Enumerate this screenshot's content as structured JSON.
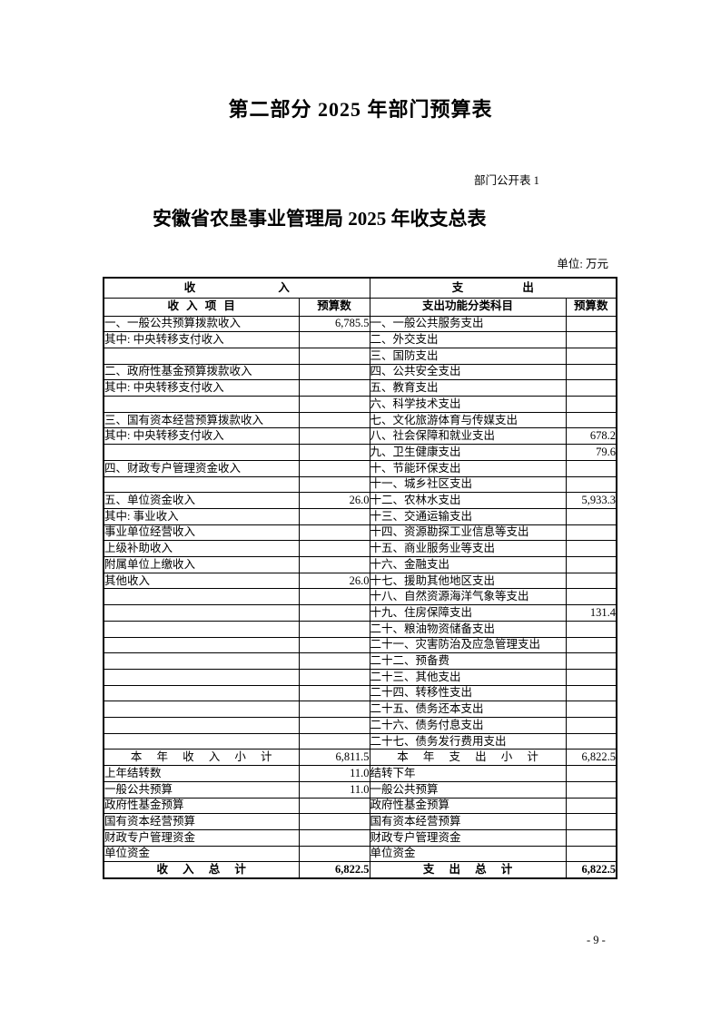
{
  "document": {
    "section_title": "第二部分 2025 年部门预算表",
    "table_label": "部门公开表 1",
    "table_title": "安徽省农垦事业管理局 2025 年收支总表",
    "unit_note": "单位: 万元",
    "page_number": "- 9 -"
  },
  "table": {
    "group_headers": {
      "income": "收 入",
      "expense": "支 出"
    },
    "column_headers": {
      "income_item": "收 入 项 目",
      "income_budget": "预算数",
      "expense_item": "支出功能分类科目",
      "expense_budget": "预算数"
    },
    "rows": [
      {
        "l": "一、一般公共预算拨款收入",
        "li": 0,
        "lv": "6,785.5",
        "r": "一、一般公共服务支出",
        "rv": ""
      },
      {
        "l": "其中: 中央转移支付收入",
        "li": 2,
        "lv": "",
        "r": "二、外交支出",
        "rv": ""
      },
      {
        "l": "",
        "li": 0,
        "lv": "",
        "r": "三、国防支出",
        "rv": ""
      },
      {
        "l": "二、政府性基金预算拨款收入",
        "li": 0,
        "lv": "",
        "r": "四、公共安全支出",
        "rv": ""
      },
      {
        "l": "其中: 中央转移支付收入",
        "li": 2,
        "lv": "",
        "r": "五、教育支出",
        "rv": ""
      },
      {
        "l": "",
        "li": 0,
        "lv": "",
        "r": "六、科学技术支出",
        "rv": ""
      },
      {
        "l": "三、国有资本经营预算拨款收入",
        "li": 0,
        "lv": "",
        "r": "七、文化旅游体育与传媒支出",
        "rv": ""
      },
      {
        "l": "其中: 中央转移支付收入",
        "li": 2,
        "lv": "",
        "r": "八、社会保障和就业支出",
        "rv": "678.2"
      },
      {
        "l": "",
        "li": 0,
        "lv": "",
        "r": "九、卫生健康支出",
        "rv": "79.6"
      },
      {
        "l": "四、财政专户管理资金收入",
        "li": 0,
        "lv": "",
        "r": "十、节能环保支出",
        "rv": ""
      },
      {
        "l": "",
        "li": 0,
        "lv": "",
        "r": "十一、城乡社区支出",
        "rv": ""
      },
      {
        "l": "五、单位资金收入",
        "li": 0,
        "lv": "26.0",
        "r": "十二、农林水支出",
        "rv": "5,933.3"
      },
      {
        "l": "其中: 事业收入",
        "li": 2,
        "lv": "",
        "r": "十三、交通运输支出",
        "rv": ""
      },
      {
        "l": "事业单位经营收入",
        "li": 3,
        "lv": "",
        "r": "十四、资源勘探工业信息等支出",
        "rv": ""
      },
      {
        "l": "上级补助收入",
        "li": 3,
        "lv": "",
        "r": "十五、商业服务业等支出",
        "rv": ""
      },
      {
        "l": "附属单位上缴收入",
        "li": 3,
        "lv": "",
        "r": "十六、金融支出",
        "rv": ""
      },
      {
        "l": "其他收入",
        "li": 3,
        "lv": "26.0",
        "r": "十七、援助其他地区支出",
        "rv": ""
      },
      {
        "l": "",
        "li": 0,
        "lv": "",
        "r": "十八、自然资源海洋气象等支出",
        "rv": ""
      },
      {
        "l": "",
        "li": 0,
        "lv": "",
        "r": "十九、住房保障支出",
        "rv": "131.4"
      },
      {
        "l": "",
        "li": 0,
        "lv": "",
        "r": "二十、粮油物资储备支出",
        "rv": ""
      },
      {
        "l": "",
        "li": 0,
        "lv": "",
        "r": "二十一、灾害防治及应急管理支出",
        "rv": ""
      },
      {
        "l": "",
        "li": 0,
        "lv": "",
        "r": "二十二、预备费",
        "rv": ""
      },
      {
        "l": "",
        "li": 0,
        "lv": "",
        "r": "二十三、其他支出",
        "rv": ""
      },
      {
        "l": "",
        "li": 0,
        "lv": "",
        "r": "二十四、转移性支出",
        "rv": ""
      },
      {
        "l": "",
        "li": 0,
        "lv": "",
        "r": "二十五、债务还本支出",
        "rv": ""
      },
      {
        "l": "",
        "li": 0,
        "lv": "",
        "r": "二十六、债务付息支出",
        "rv": ""
      },
      {
        "l": "",
        "li": 0,
        "lv": "",
        "r": "二十七、债务发行费用支出",
        "rv": ""
      },
      {
        "l": "本 年 收 入 小 计",
        "li": 0,
        "lv": "6,811.5",
        "c": true,
        "r": "本 年 支 出 小 计",
        "rv": "6,822.5"
      },
      {
        "l": "上年结转数",
        "li": 0,
        "lv": "11.0",
        "r": "结转下年",
        "rv": ""
      },
      {
        "l": "一般公共预算",
        "li": 1,
        "lv": "11.0",
        "r": "一般公共预算",
        "ri": 1,
        "rv": ""
      },
      {
        "l": "政府性基金预算",
        "li": 1,
        "lv": "",
        "r": "政府性基金预算",
        "ri": 1,
        "rv": ""
      },
      {
        "l": "国有资本经营预算",
        "li": 1,
        "lv": "",
        "r": "国有资本经营预算",
        "ri": 1,
        "rv": ""
      },
      {
        "l": "财政专户管理资金",
        "li": 1,
        "lv": "",
        "r": "财政专户管理资金",
        "ri": 1,
        "rv": ""
      },
      {
        "l": "单位资金",
        "li": 1,
        "lv": "",
        "r": "单位资金",
        "ri": 1,
        "rv": ""
      },
      {
        "l": "收 入 总 计",
        "li": 0,
        "lv": "6,822.5",
        "c": true,
        "b": true,
        "r": "支 出 总 计",
        "rv": "6,822.5"
      }
    ]
  }
}
